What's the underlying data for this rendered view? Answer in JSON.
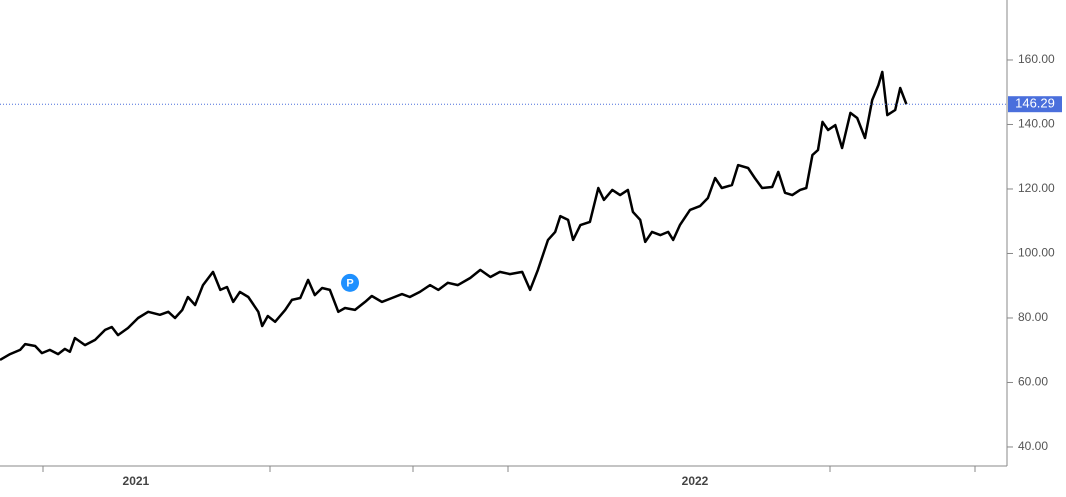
{
  "chart_data": {
    "type": "line",
    "x": [
      2020.757,
      2020.775,
      2020.793,
      2020.802,
      2020.82,
      2020.832,
      2020.846,
      2020.861,
      2020.873,
      2020.882,
      2020.891,
      2020.909,
      2020.927,
      2020.945,
      2020.957,
      2020.968,
      2020.986,
      2021.004,
      2021.022,
      2021.043,
      2021.058,
      2021.07,
      2021.083,
      2021.093,
      2021.106,
      2021.12,
      2021.138,
      2021.151,
      2021.163,
      2021.174,
      2021.186,
      2021.201,
      2021.219,
      2021.226,
      2021.236,
      2021.249,
      2021.267,
      2021.279,
      2021.294,
      2021.308,
      2021.32,
      2021.333,
      2021.347,
      2021.362,
      2021.374,
      2021.392,
      2021.41,
      2021.422,
      2021.44,
      2021.458,
      2021.476,
      2021.49,
      2021.508,
      2021.526,
      2021.541,
      2021.558,
      2021.576,
      2021.598,
      2021.616,
      2021.634,
      2021.651,
      2021.669,
      2021.691,
      2021.705,
      2021.719,
      2021.737,
      2021.75,
      2021.759,
      2021.773,
      2021.782,
      2021.795,
      2021.812,
      2021.827,
      2021.837,
      2021.852,
      2021.866,
      2021.88,
      2021.889,
      2021.902,
      2021.911,
      2021.923,
      2021.938,
      2021.952,
      2021.961,
      2021.973,
      2021.991,
      2022.009,
      2022.023,
      2022.036,
      2022.048,
      2022.066,
      2022.077,
      2022.095,
      2022.107,
      2022.12,
      2022.138,
      2022.149,
      2022.161,
      2022.174,
      2022.188,
      2022.199,
      2022.21,
      2022.22,
      2022.228,
      2022.238,
      2022.251,
      2022.263,
      2022.278,
      2022.29,
      2022.304,
      2022.317,
      2022.328,
      2022.335,
      2022.344,
      2022.358,
      2022.367,
      2022.378
    ],
    "series": [
      {
        "color": "#000000",
        "values": [
          67.0,
          68.8,
          70.1,
          71.9,
          71.3,
          69.1,
          70.1,
          68.8,
          70.4,
          69.5,
          73.8,
          71.6,
          73.2,
          76.3,
          77.2,
          74.7,
          76.9,
          80.0,
          81.9,
          81.0,
          81.9,
          80.0,
          82.5,
          86.5,
          84.0,
          90.2,
          94.3,
          88.7,
          89.6,
          85.0,
          88.1,
          86.5,
          81.9,
          77.5,
          80.6,
          78.8,
          82.5,
          85.6,
          86.2,
          91.8,
          87.1,
          89.3,
          88.7,
          81.9,
          83.1,
          82.5,
          85.0,
          86.8,
          85.0,
          86.2,
          87.4,
          86.5,
          88.1,
          90.2,
          88.7,
          90.9,
          90.2,
          92.4,
          94.9,
          92.7,
          94.3,
          93.6,
          94.3,
          88.7,
          94.9,
          104.2,
          106.7,
          111.6,
          110.4,
          104.2,
          108.8,
          109.8,
          120.3,
          116.6,
          119.7,
          118.1,
          119.7,
          112.9,
          110.4,
          103.6,
          106.7,
          105.7,
          106.7,
          104.2,
          108.8,
          113.5,
          114.7,
          117.2,
          123.4,
          120.3,
          121.2,
          127.4,
          126.5,
          123.4,
          120.3,
          120.6,
          125.3,
          118.8,
          118.1,
          119.7,
          120.3,
          130.5,
          132.1,
          140.8,
          138.3,
          139.8,
          132.7,
          143.6,
          142.0,
          135.8,
          147.6,
          152.2,
          156.3,
          142.9,
          144.5,
          151.3,
          146.29
        ]
      }
    ],
    "xlim": [
      2020.757,
      2022.558
    ],
    "xticks": [
      {
        "value": 2021,
        "label": "2021"
      },
      {
        "value": 2022,
        "label": "2022"
      }
    ],
    "ylim": [
      34.1,
      178.6
    ],
    "yticks": [
      {
        "value": 40,
        "label": "40.00"
      },
      {
        "value": 60,
        "label": "60.00"
      },
      {
        "value": 80,
        "label": "80.00"
      },
      {
        "value": 100,
        "label": "100.00"
      },
      {
        "value": 120,
        "label": "120.00"
      },
      {
        "value": 140,
        "label": "140.00"
      },
      {
        "value": 160,
        "label": "160.00"
      }
    ],
    "last_price": 146.29,
    "last_price_color": "#4a6fdc",
    "annotations": [
      {
        "label": "P",
        "x": 2021.383,
        "y": 90.9,
        "color": "#1e90ff"
      }
    ]
  }
}
